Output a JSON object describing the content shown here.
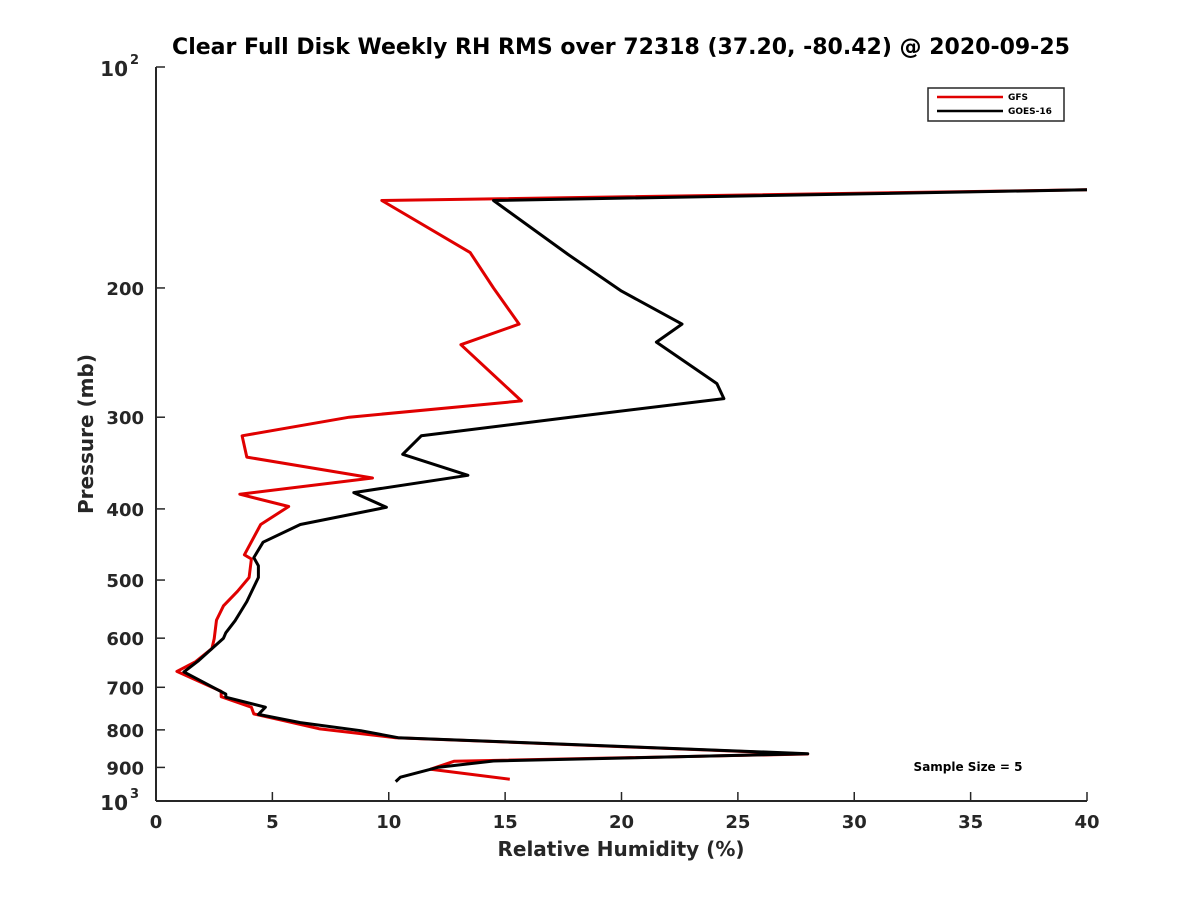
{
  "chart_data": {
    "type": "line",
    "title": "Clear Full Disk Weekly RH RMS over 72318 (37.20, -80.42) @ 2020-09-25",
    "xlabel": "Relative Humidity (%)",
    "ylabel": "Pressure (mb)",
    "xlim": [
      0,
      40
    ],
    "ylim": [
      100,
      1000
    ],
    "yscale": "log",
    "y_reversed": true,
    "grid": false,
    "legend_position": "top-right",
    "x_ticks": [
      0,
      5,
      10,
      15,
      20,
      25,
      30,
      35,
      40
    ],
    "x_tick_labels": [
      "0",
      "5",
      "10",
      "15",
      "20",
      "25",
      "30",
      "35",
      "40"
    ],
    "y_ticks": [
      200,
      300,
      400,
      500,
      600,
      700,
      800,
      900
    ],
    "y_tick_labels": [
      "200",
      "300",
      "400",
      "500",
      "600",
      "700",
      "800",
      "900"
    ],
    "y_end_labels": {
      "top_base": "10",
      "top_exp": "2",
      "bottom_base": "10",
      "bottom_exp": "3"
    },
    "series": [
      {
        "name": "GFS",
        "color": "#e00000",
        "points": [
          [
            40.0,
            147
          ],
          [
            9.7,
            152
          ],
          [
            13.5,
            179
          ],
          [
            14.5,
            200
          ],
          [
            15.6,
            224
          ],
          [
            13.1,
            239
          ],
          [
            15.7,
            285
          ],
          [
            8.3,
            300
          ],
          [
            3.7,
            318
          ],
          [
            3.9,
            340
          ],
          [
            9.3,
            363
          ],
          [
            3.6,
            382
          ],
          [
            5.7,
            397
          ],
          [
            4.5,
            420
          ],
          [
            3.8,
            462
          ],
          [
            4.1,
            468
          ],
          [
            4.0,
            496
          ],
          [
            3.5,
            518
          ],
          [
            2.9,
            542
          ],
          [
            2.6,
            567
          ],
          [
            2.5,
            601
          ],
          [
            2.4,
            620
          ],
          [
            1.7,
            646
          ],
          [
            0.9,
            666
          ],
          [
            2.8,
            709
          ],
          [
            2.8,
            721
          ],
          [
            4.1,
            745
          ],
          [
            4.2,
            761
          ],
          [
            5.3,
            775
          ],
          [
            7.0,
            797
          ],
          [
            10.3,
            820
          ],
          [
            28.0,
            863
          ],
          [
            12.8,
            883
          ],
          [
            11.8,
            905
          ],
          [
            15.2,
            934
          ]
        ]
      },
      {
        "name": "GOES-16",
        "color": "#000000",
        "points": [
          [
            40.0,
            147
          ],
          [
            14.5,
            152
          ],
          [
            17.7,
            180
          ],
          [
            20.0,
            202
          ],
          [
            22.6,
            224
          ],
          [
            21.5,
            237
          ],
          [
            24.1,
            270
          ],
          [
            24.4,
            283
          ],
          [
            17.8,
            300
          ],
          [
            11.4,
            318
          ],
          [
            10.6,
            337
          ],
          [
            13.4,
            360
          ],
          [
            8.5,
            380
          ],
          [
            9.9,
            398
          ],
          [
            6.2,
            420
          ],
          [
            4.6,
            444
          ],
          [
            4.2,
            466
          ],
          [
            4.4,
            478
          ],
          [
            4.4,
            496
          ],
          [
            3.9,
            535
          ],
          [
            3.4,
            568
          ],
          [
            3.0,
            590
          ],
          [
            2.9,
            600
          ],
          [
            2.4,
            620
          ],
          [
            1.8,
            645
          ],
          [
            1.2,
            667
          ],
          [
            3.0,
            715
          ],
          [
            3.0,
            722
          ],
          [
            4.7,
            745
          ],
          [
            4.4,
            762
          ],
          [
            6.2,
            782
          ],
          [
            8.8,
            802
          ],
          [
            10.4,
            820
          ],
          [
            28.0,
            862
          ],
          [
            14.5,
            882
          ],
          [
            12.1,
            900
          ],
          [
            10.5,
            928
          ],
          [
            10.3,
            941
          ]
        ]
      }
    ],
    "annotations": [
      "Sample Size = 5"
    ]
  }
}
